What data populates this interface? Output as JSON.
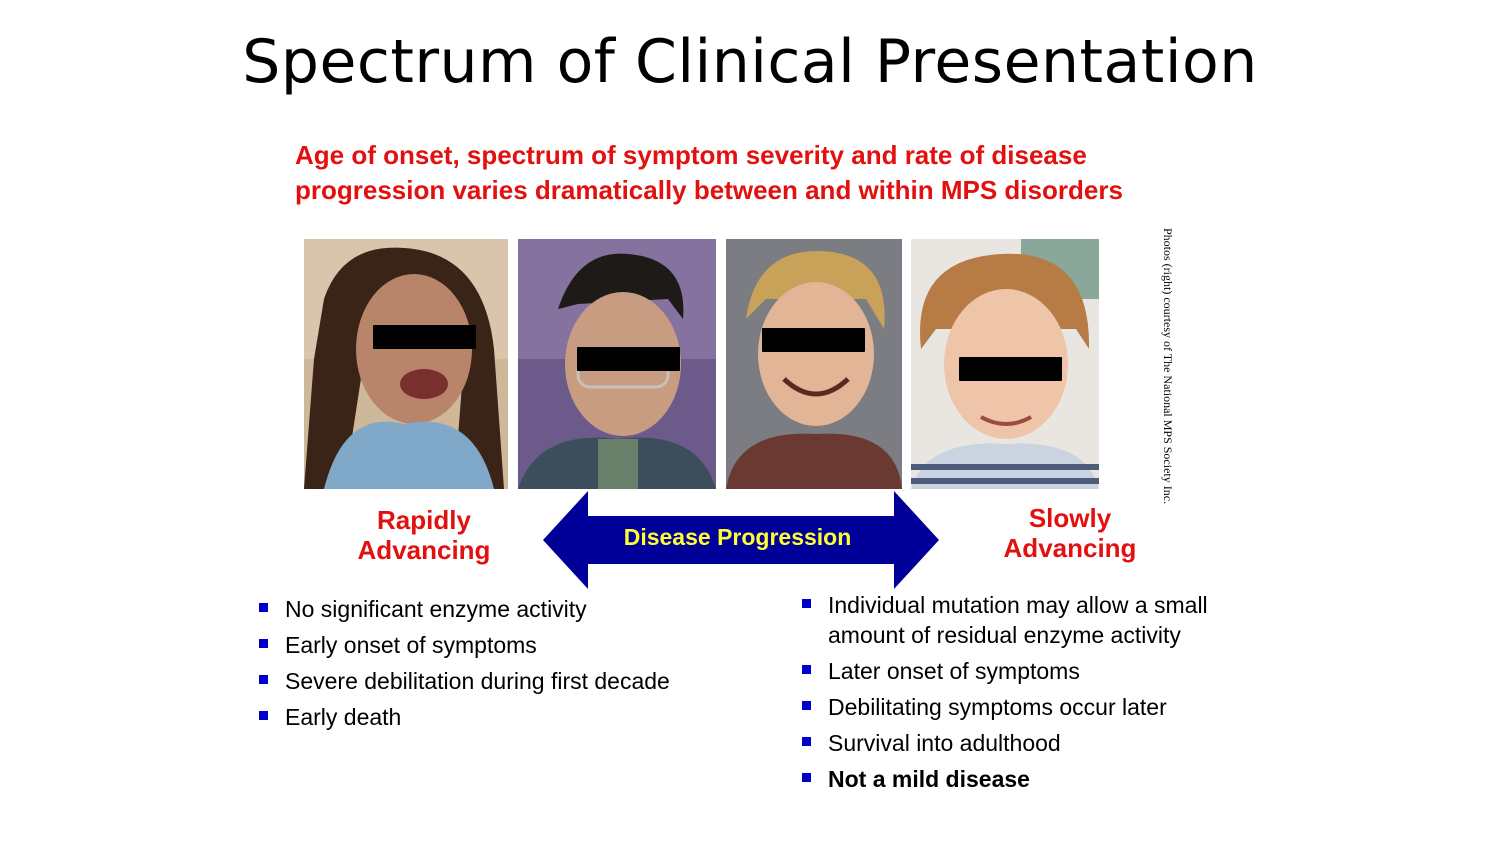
{
  "slide": {
    "title": "Spectrum of Clinical Presentation",
    "subtitle_lines": [
      "Age of onset, spectrum of symptom severity and rate of disease",
      "progression varies dramatically between and within MPS disorders"
    ],
    "photo_credit": "Photos (right) courtesy of The National MPS Society Inc.",
    "left_label_lines": [
      "Rapidly",
      "Advancing"
    ],
    "right_label_lines": [
      "Slowly",
      "Advancing"
    ],
    "arrow_label": "Disease Progression",
    "left_bullets": [
      "No significant enzyme activity",
      "Early onset of symptoms",
      "Severe debilitation during first decade",
      "Early death"
    ],
    "right_bullets": [
      "Individual mutation may allow a small amount of residual enzyme activity",
      "Later onset of symptoms",
      "Debilitating symptoms occur later",
      "Survival into adulthood",
      "Not a mild disease"
    ],
    "colors": {
      "accent_red": "#e31010",
      "arrow_blue": "#000099",
      "arrow_text_yellow": "#ffff33",
      "bullet_blue": "#0000cc"
    }
  }
}
